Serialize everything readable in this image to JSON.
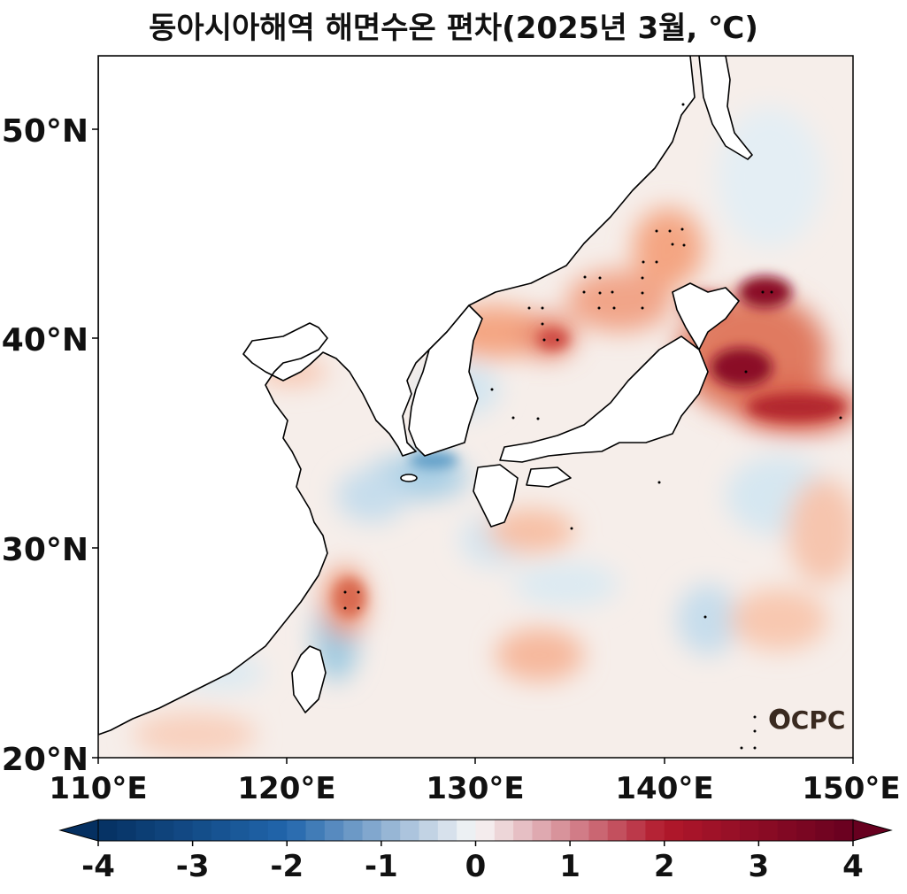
{
  "title": "동아시아해역 해면수온 편차(2025년 3월, ℃)",
  "axes": {
    "lat_ticks": [
      "50°N",
      "40°N",
      "30°N",
      "20°N"
    ],
    "lon_ticks": [
      "110°E",
      "120°E",
      "130°E",
      "140°E",
      "150°E"
    ],
    "lon_range": [
      110,
      150
    ],
    "lat_range": [
      20,
      53.5
    ]
  },
  "colorbar": {
    "ticks": [
      "-4",
      "-3",
      "-2",
      "-1",
      "0",
      "1",
      "2",
      "3",
      "4"
    ],
    "min": -4,
    "max": 4,
    "steps": 40,
    "cold_color": "#053061",
    "neutral_color": "#f7f7f7",
    "warm_color": "#67001f"
  },
  "logo": {
    "text": "OCPC"
  }
}
